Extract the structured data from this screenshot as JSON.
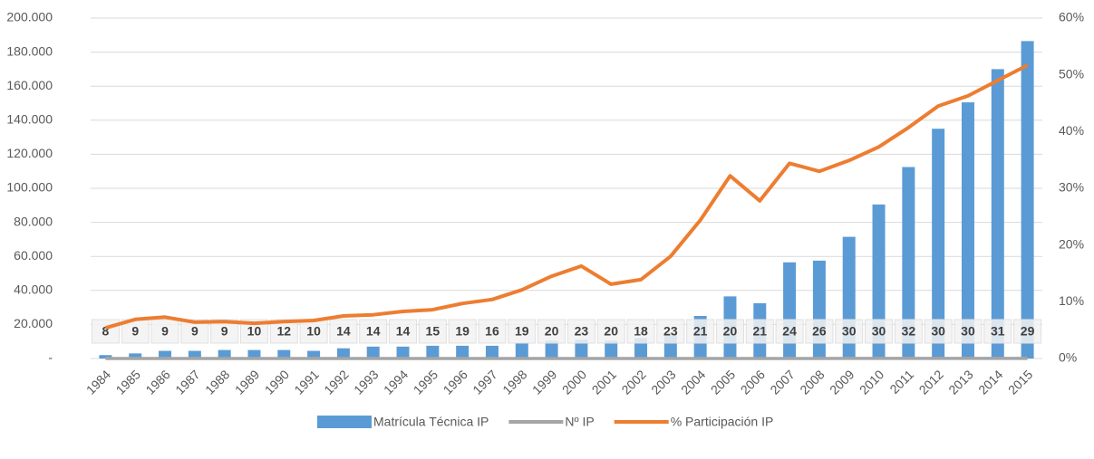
{
  "chart_data": {
    "type": "bar",
    "categories": [
      "1984",
      "1985",
      "1986",
      "1987",
      "1988",
      "1989",
      "1990",
      "1991",
      "1992",
      "1993",
      "1994",
      "1995",
      "1996",
      "1997",
      "1998",
      "1999",
      "2000",
      "2001",
      "2002",
      "2003",
      "2004",
      "2005",
      "2006",
      "2007",
      "2008",
      "2009",
      "2010",
      "2011",
      "2012",
      "2013",
      "2014",
      "2015"
    ],
    "series": [
      {
        "name": "Matrícula Técnica IP",
        "type": "bar",
        "color": "#5b9bd5",
        "values": [
          2000,
          3000,
          4500,
          4500,
          5000,
          5000,
          5000,
          4500,
          6000,
          7000,
          7000,
          7500,
          7500,
          7500,
          9000,
          10500,
          11000,
          10500,
          12000,
          15000,
          25000,
          36500,
          32500,
          56500,
          57500,
          71500,
          90500,
          112500,
          135000,
          150500,
          170000,
          186500
        ]
      },
      {
        "name": "Nº IP",
        "type": "line",
        "color": "#a5a5a5",
        "values": [
          8,
          9,
          9,
          9,
          9,
          10,
          12,
          10,
          14,
          14,
          14,
          15,
          19,
          16,
          19,
          20,
          23,
          20,
          18,
          23,
          21,
          20,
          21,
          24,
          26,
          30,
          30,
          32,
          30,
          30,
          31,
          29
        ]
      },
      {
        "name": "% Participación IP",
        "type": "line",
        "axis": "y2",
        "color": "#ed7d31",
        "values": [
          5.4,
          6.9,
          7.3,
          6.4,
          6.5,
          6.2,
          6.5,
          6.7,
          7.5,
          7.7,
          8.3,
          8.6,
          9.7,
          10.4,
          12.1,
          14.5,
          16.3,
          13.1,
          13.9,
          18.0,
          24.4,
          32.2,
          27.8,
          34.4,
          33.0,
          34.9,
          37.3,
          40.7,
          44.5,
          46.3,
          49.0,
          51.7
        ]
      }
    ],
    "ylim": [
      0,
      200000
    ],
    "yticks": [
      {
        "value": 0,
        "label": "-"
      },
      {
        "value": 20000,
        "label": "20.000"
      },
      {
        "value": 40000,
        "label": "40.000"
      },
      {
        "value": 60000,
        "label": "60.000"
      },
      {
        "value": 80000,
        "label": "80.000"
      },
      {
        "value": 100000,
        "label": "100.000"
      },
      {
        "value": 120000,
        "label": "120.000"
      },
      {
        "value": 140000,
        "label": "140.000"
      },
      {
        "value": 160000,
        "label": "160.000"
      },
      {
        "value": 180000,
        "label": "180.000"
      },
      {
        "value": 200000,
        "label": "200.000"
      }
    ],
    "y2lim": [
      0,
      60
    ],
    "y2ticks": [
      {
        "value": 0,
        "label": "0%"
      },
      {
        "value": 10,
        "label": "10%"
      },
      {
        "value": 20,
        "label": "20%"
      },
      {
        "value": 30,
        "label": "30%"
      },
      {
        "value": 40,
        "label": "40%"
      },
      {
        "value": 50,
        "label": "50%"
      },
      {
        "value": 60,
        "label": "60%"
      }
    ],
    "grid": true,
    "legend": "bottom"
  }
}
